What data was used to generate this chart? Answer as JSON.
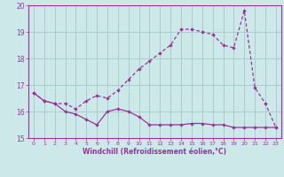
{
  "xlabel": "Windchill (Refroidissement éolien,°C)",
  "background_color": "#cce8e8",
  "grid_color": "#aacccc",
  "line_color": "#993399",
  "spine_color": "#993399",
  "xlim": [
    -0.5,
    23.5
  ],
  "ylim": [
    15.0,
    20.0
  ],
  "xticks": [
    0,
    1,
    2,
    3,
    4,
    5,
    6,
    7,
    8,
    9,
    10,
    11,
    12,
    13,
    14,
    15,
    16,
    17,
    18,
    19,
    20,
    21,
    22,
    23
  ],
  "yticks": [
    15,
    16,
    17,
    18,
    19,
    20
  ],
  "line1_x": [
    0,
    1,
    2,
    3,
    4,
    5,
    6,
    7,
    8,
    9,
    10,
    11,
    12,
    13,
    14,
    15,
    16,
    17,
    18,
    19,
    20,
    21,
    22,
    23
  ],
  "line1_y": [
    16.7,
    16.4,
    16.3,
    16.0,
    15.9,
    15.7,
    15.5,
    16.0,
    16.1,
    16.0,
    15.8,
    15.5,
    15.5,
    15.5,
    15.5,
    15.55,
    15.55,
    15.5,
    15.5,
    15.4,
    15.4,
    15.4,
    15.4,
    15.4
  ],
  "line2_x": [
    0,
    1,
    2,
    3,
    4,
    5,
    6,
    7,
    8,
    9,
    10,
    11,
    12,
    13,
    14,
    15,
    16,
    17,
    18,
    19,
    20,
    21,
    22,
    23
  ],
  "line2_y": [
    16.7,
    16.4,
    16.3,
    16.3,
    16.1,
    16.4,
    16.6,
    16.5,
    16.8,
    17.2,
    17.6,
    17.9,
    18.2,
    18.5,
    19.1,
    19.1,
    19.0,
    18.9,
    18.5,
    18.4,
    19.8,
    16.9,
    16.3,
    15.4
  ],
  "tick_labelsize": 5,
  "xlabel_fontsize": 5.5
}
